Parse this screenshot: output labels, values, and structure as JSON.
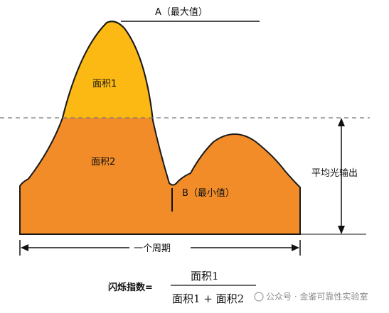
{
  "labels": {
    "max": "A（最大值）",
    "min": "B（最小值）",
    "area1": "面积1",
    "area2": "面积2",
    "avg_output": "平均光输出",
    "period": "一个周期"
  },
  "formula": {
    "name": "闪烁指数=",
    "numerator": "面积1",
    "denominator": "面积1 + 面积2"
  },
  "watermark": "公众号 · 金鉴可靠性实验室",
  "colors": {
    "area1": "#FDB913",
    "area2": "#F28C28",
    "outline": "#1a1a1a",
    "dash": "#777777"
  }
}
